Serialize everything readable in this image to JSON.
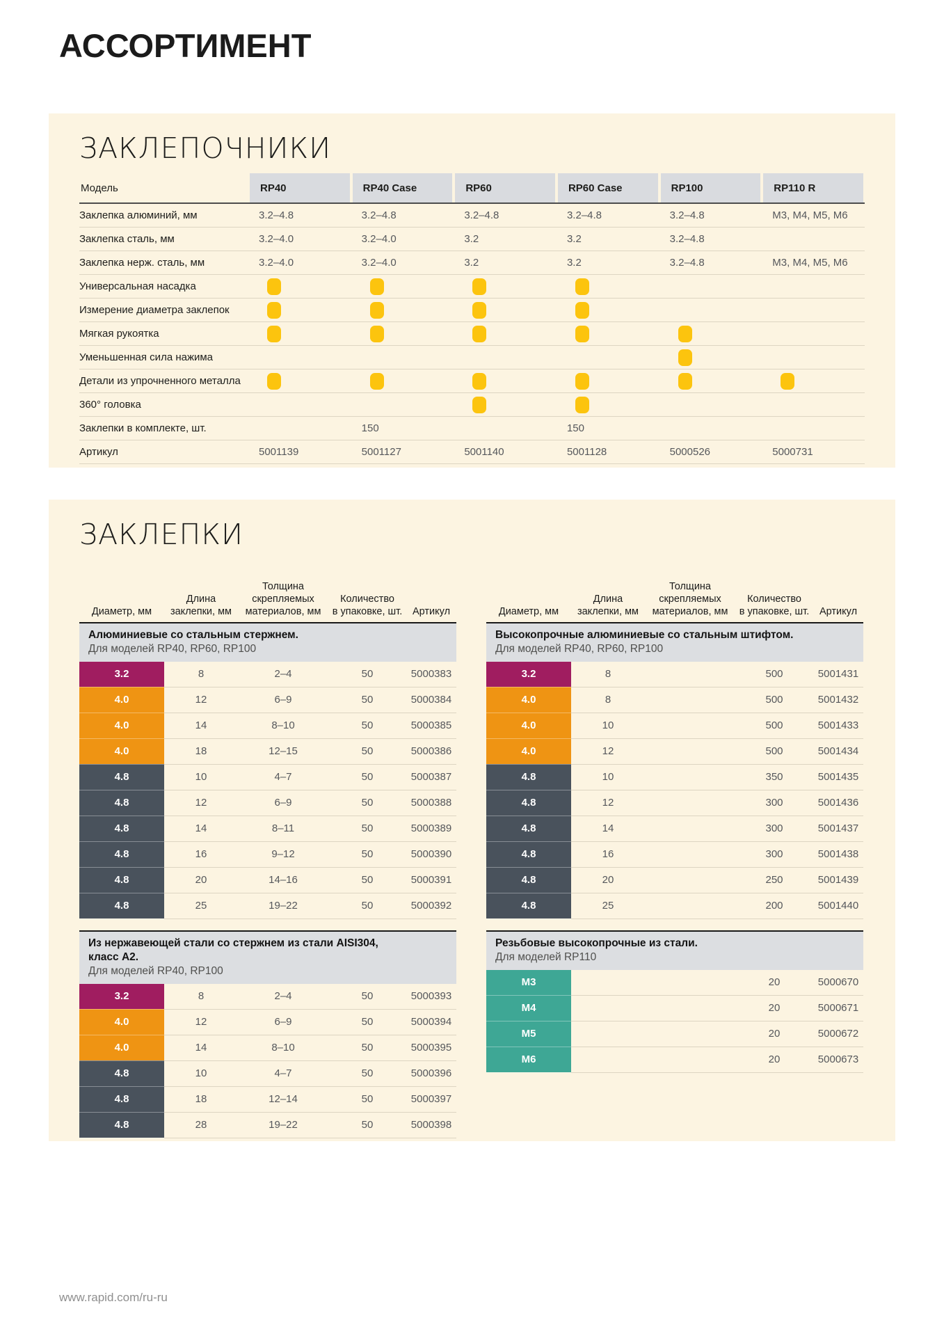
{
  "page": {
    "title": "АССОРТИМЕНТ",
    "footer_url": "www.rapid.com/ru-ru"
  },
  "colors": {
    "panel_bg": "#fcf4e1",
    "header_cell_bg": "#d9dbdf",
    "group_band_bg": "#dcdee1",
    "dot_yellow": "#fcc40e",
    "d32": "#a01d60",
    "d40": "#ef9413",
    "d48": "#49525c",
    "m": "#3ea795"
  },
  "riveters": {
    "section_title": "ЗАКЛЕПОЧНИКИ",
    "model_label": "Модель",
    "models": [
      "RP40",
      "RP40 Case",
      "RP60",
      "RP60 Case",
      "RP100",
      "RP110 R"
    ],
    "rows": [
      {
        "label": "Заклепка алюминий, мм",
        "type": "text",
        "values": [
          "3.2–4.8",
          "3.2–4.8",
          "3.2–4.8",
          "3.2–4.8",
          "3.2–4.8",
          "M3, M4, M5, M6"
        ]
      },
      {
        "label": "Заклепка сталь, мм",
        "type": "text",
        "values": [
          "3.2–4.0",
          "3.2–4.0",
          "3.2",
          "3.2",
          "3.2–4.8",
          ""
        ]
      },
      {
        "label": "Заклепка нерж. сталь, мм",
        "type": "text",
        "values": [
          "3.2–4.0",
          "3.2–4.0",
          "3.2",
          "3.2",
          "3.2–4.8",
          "M3, M4, M5, M6"
        ]
      },
      {
        "label": "Универсальная насадка",
        "type": "dots",
        "values": [
          true,
          true,
          true,
          true,
          false,
          false
        ]
      },
      {
        "label": "Измерение диаметра заклепок",
        "type": "dots",
        "values": [
          true,
          true,
          true,
          true,
          false,
          false
        ]
      },
      {
        "label": "Мягкая рукоятка",
        "type": "dots",
        "values": [
          true,
          true,
          true,
          true,
          true,
          false
        ]
      },
      {
        "label": "Уменьшенная сила нажима",
        "type": "dots",
        "values": [
          false,
          false,
          false,
          false,
          true,
          false
        ]
      },
      {
        "label": "Детали из упрочненного металла",
        "type": "dots",
        "values": [
          true,
          true,
          true,
          true,
          true,
          true
        ]
      },
      {
        "label": "360° головка",
        "type": "dots",
        "values": [
          false,
          false,
          true,
          true,
          false,
          false
        ]
      },
      {
        "label": "Заклепки в комплекте, шт.",
        "type": "text",
        "values": [
          "",
          "150",
          "",
          "150",
          "",
          ""
        ]
      },
      {
        "label": "Артикул",
        "type": "text",
        "values": [
          "5001139",
          "5001127",
          "5001140",
          "5001128",
          "5000526",
          "5000731"
        ]
      }
    ]
  },
  "rivets": {
    "section_title": "ЗАКЛЕПКИ",
    "column_headers": [
      [
        "Диаметр, мм"
      ],
      [
        "Длина",
        "заклепки, мм"
      ],
      [
        "Толщина",
        "скрепляемых",
        "материалов, мм"
      ],
      [
        "Количество",
        "в упаковке, шт."
      ],
      [
        "Артикул"
      ]
    ],
    "tables": [
      {
        "title_lines": [
          "Алюминиевые со стальным стержнем."
        ],
        "subtitle": "Для моделей RP40, RP60, RP100",
        "rows": [
          {
            "diameter": "3.2",
            "color": "d32",
            "length": "8",
            "thickness": "2–4",
            "qty": "50",
            "sku": "5000383"
          },
          {
            "diameter": "4.0",
            "color": "d40",
            "length": "12",
            "thickness": "6–9",
            "qty": "50",
            "sku": "5000384"
          },
          {
            "diameter": "4.0",
            "color": "d40",
            "length": "14",
            "thickness": "8–10",
            "qty": "50",
            "sku": "5000385"
          },
          {
            "diameter": "4.0",
            "color": "d40",
            "length": "18",
            "thickness": "12–15",
            "qty": "50",
            "sku": "5000386"
          },
          {
            "diameter": "4.8",
            "color": "d48",
            "length": "10",
            "thickness": "4–7",
            "qty": "50",
            "sku": "5000387"
          },
          {
            "diameter": "4.8",
            "color": "d48",
            "length": "12",
            "thickness": "6–9",
            "qty": "50",
            "sku": "5000388"
          },
          {
            "diameter": "4.8",
            "color": "d48",
            "length": "14",
            "thickness": "8–11",
            "qty": "50",
            "sku": "5000389"
          },
          {
            "diameter": "4.8",
            "color": "d48",
            "length": "16",
            "thickness": "9–12",
            "qty": "50",
            "sku": "5000390"
          },
          {
            "diameter": "4.8",
            "color": "d48",
            "length": "20",
            "thickness": "14–16",
            "qty": "50",
            "sku": "5000391"
          },
          {
            "diameter": "4.8",
            "color": "d48",
            "length": "25",
            "thickness": "19–22",
            "qty": "50",
            "sku": "5000392"
          }
        ]
      },
      {
        "title_lines": [
          "Высокопрочные алюминиевые со стальным штифтом."
        ],
        "subtitle": "Для моделей RP40, RP60, RP100",
        "rows": [
          {
            "diameter": "3.2",
            "color": "d32",
            "length": "8",
            "thickness": "",
            "qty": "500",
            "sku": "5001431"
          },
          {
            "diameter": "4.0",
            "color": "d40",
            "length": "8",
            "thickness": "",
            "qty": "500",
            "sku": "5001432"
          },
          {
            "diameter": "4.0",
            "color": "d40",
            "length": "10",
            "thickness": "",
            "qty": "500",
            "sku": "5001433"
          },
          {
            "diameter": "4.0",
            "color": "d40",
            "length": "12",
            "thickness": "",
            "qty": "500",
            "sku": "5001434"
          },
          {
            "diameter": "4.8",
            "color": "d48",
            "length": "10",
            "thickness": "",
            "qty": "350",
            "sku": "5001435"
          },
          {
            "diameter": "4.8",
            "color": "d48",
            "length": "12",
            "thickness": "",
            "qty": "300",
            "sku": "5001436"
          },
          {
            "diameter": "4.8",
            "color": "d48",
            "length": "14",
            "thickness": "",
            "qty": "300",
            "sku": "5001437"
          },
          {
            "diameter": "4.8",
            "color": "d48",
            "length": "16",
            "thickness": "",
            "qty": "300",
            "sku": "5001438"
          },
          {
            "diameter": "4.8",
            "color": "d48",
            "length": "20",
            "thickness": "",
            "qty": "250",
            "sku": "5001439"
          },
          {
            "diameter": "4.8",
            "color": "d48",
            "length": "25",
            "thickness": "",
            "qty": "200",
            "sku": "5001440"
          }
        ]
      },
      {
        "title_lines": [
          "Из нержавеющей стали со стержнем из стали AISI304,",
          "класс А2."
        ],
        "subtitle": "Для моделей RP40, RP100",
        "rows": [
          {
            "diameter": "3.2",
            "color": "d32",
            "length": "8",
            "thickness": "2–4",
            "qty": "50",
            "sku": "5000393"
          },
          {
            "diameter": "4.0",
            "color": "d40",
            "length": "12",
            "thickness": "6–9",
            "qty": "50",
            "sku": "5000394"
          },
          {
            "diameter": "4.0",
            "color": "d40",
            "length": "14",
            "thickness": "8–10",
            "qty": "50",
            "sku": "5000395"
          },
          {
            "diameter": "4.8",
            "color": "d48",
            "length": "10",
            "thickness": "4–7",
            "qty": "50",
            "sku": "5000396"
          },
          {
            "diameter": "4.8",
            "color": "d48",
            "length": "18",
            "thickness": "12–14",
            "qty": "50",
            "sku": "5000397"
          },
          {
            "diameter": "4.8",
            "color": "d48",
            "length": "28",
            "thickness": "19–22",
            "qty": "50",
            "sku": "5000398"
          }
        ]
      },
      {
        "title_lines": [
          "Резьбовые высокопрочные из стали."
        ],
        "subtitle": "Для моделей RP110",
        "rows": [
          {
            "diameter": "M3",
            "color": "m",
            "length": "",
            "thickness": "",
            "qty": "20",
            "sku": "5000670"
          },
          {
            "diameter": "M4",
            "color": "m",
            "length": "",
            "thickness": "",
            "qty": "20",
            "sku": "5000671"
          },
          {
            "diameter": "M5",
            "color": "m",
            "length": "",
            "thickness": "",
            "qty": "20",
            "sku": "5000672"
          },
          {
            "diameter": "M6",
            "color": "m",
            "length": "",
            "thickness": "",
            "qty": "20",
            "sku": "5000673"
          }
        ]
      }
    ]
  }
}
